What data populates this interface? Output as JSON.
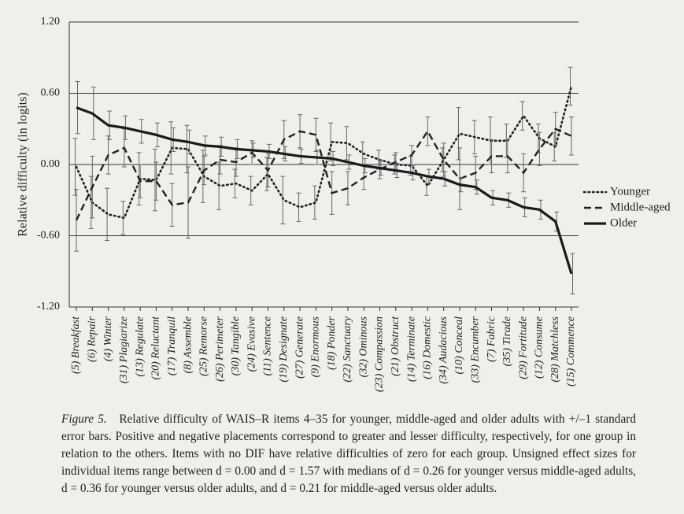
{
  "chart_data": {
    "type": "line",
    "y_label": "Relative difficulty (in logits)",
    "categories": [
      "(5) Breakfast",
      "(6) Repair",
      "(4) Winter",
      "(31) Plagiarize",
      "(13) Regulate",
      "(20) Reluctant",
      "(17) Tranquil",
      "(8) Assemble",
      "(25) Remorse",
      "(26) Perimeter",
      "(30) Tangible",
      "(24) Evasive",
      "(11) Sentence",
      "(19) Designate",
      "(27) Generate",
      "(9) Enormous",
      "(18) Ponder",
      "(22) Sanctuary",
      "(32) Ominous",
      "(23) Compassion",
      "(21) Obstruct",
      "(14) Terminate",
      "(16) Domestic",
      "(34) Audacious",
      "(10) Conceal",
      "(33) Encumber",
      "(7) Fabric",
      "(35) Tirade",
      "(29) Fortitude",
      "(12) Consume",
      "(28) Matchless",
      "(15) Commence"
    ],
    "series": [
      {
        "name": "Younger",
        "color": "#222222",
        "style": "dotted",
        "values": [
          -0.02,
          -0.32,
          -0.42,
          -0.45,
          -0.12,
          -0.13,
          0.14,
          0.13,
          -0.1,
          -0.18,
          -0.16,
          -0.22,
          -0.08,
          -0.3,
          -0.36,
          -0.32,
          0.19,
          0.18,
          0.09,
          0.04,
          0.0,
          -0.01,
          -0.18,
          0.04,
          0.26,
          0.23,
          0.2,
          0.2,
          0.41,
          0.22,
          0.15,
          0.66
        ],
        "errors": [
          0.24,
          0.22,
          0.22,
          0.14,
          0.22,
          0.26,
          0.22,
          0.2,
          0.22,
          0.2,
          0.12,
          0.12,
          0.14,
          0.2,
          0.12,
          0.14,
          0.16,
          0.14,
          0.1,
          0.08,
          0.08,
          0.08,
          0.08,
          0.1,
          0.22,
          0.14,
          0.2,
          0.14,
          0.12,
          0.12,
          0.12,
          0.16
        ]
      },
      {
        "name": "Middle-aged",
        "color": "#222222",
        "style": "dashed",
        "values": [
          -0.47,
          -0.19,
          0.08,
          0.14,
          -0.14,
          -0.14,
          -0.34,
          -0.32,
          -0.05,
          0.04,
          0.02,
          0.1,
          -0.05,
          0.21,
          0.28,
          0.25,
          -0.24,
          -0.2,
          -0.11,
          -0.04,
          0.02,
          0.08,
          0.28,
          0.04,
          -0.12,
          -0.07,
          0.07,
          0.07,
          -0.07,
          0.13,
          0.3,
          0.24
        ],
        "errors": [
          0.26,
          0.26,
          0.16,
          0.16,
          0.14,
          0.16,
          0.18,
          0.3,
          0.12,
          0.12,
          0.12,
          0.1,
          0.14,
          0.16,
          0.14,
          0.14,
          0.18,
          0.14,
          0.1,
          0.08,
          0.08,
          0.08,
          0.12,
          0.14,
          0.26,
          0.14,
          0.14,
          0.14,
          0.16,
          0.14,
          0.14,
          0.16
        ]
      },
      {
        "name": "Older",
        "color": "#1a1a1a",
        "style": "solid",
        "values": [
          0.48,
          0.43,
          0.33,
          0.31,
          0.28,
          0.25,
          0.21,
          0.19,
          0.16,
          0.15,
          0.13,
          0.12,
          0.11,
          0.09,
          0.07,
          0.06,
          0.05,
          0.02,
          -0.01,
          -0.03,
          -0.05,
          -0.07,
          -0.1,
          -0.12,
          -0.17,
          -0.19,
          -0.28,
          -0.3,
          -0.36,
          -0.38,
          -0.48,
          -0.92
        ],
        "errors": [
          0.22,
          0.22,
          0.12,
          0.1,
          0.1,
          0.1,
          0.1,
          0.1,
          0.08,
          0.08,
          0.08,
          0.06,
          0.06,
          0.06,
          0.06,
          0.06,
          0.06,
          0.06,
          0.06,
          0.06,
          0.06,
          0.06,
          0.06,
          0.06,
          0.06,
          0.06,
          0.06,
          0.06,
          0.08,
          0.08,
          0.08,
          0.17
        ]
      }
    ],
    "ylim": [
      -1.2,
      1.2
    ],
    "yticks": [
      {
        "value": 1.2,
        "label": "1.20"
      },
      {
        "value": 0.6,
        "label": "0.60"
      },
      {
        "value": 0,
        "label": "0.00"
      },
      {
        "value": -0.6,
        "label": "-0.60"
      },
      {
        "value": -1.2,
        "label": "-1.20"
      }
    ],
    "grid": true,
    "legend": "right",
    "caption_label": "Figure 5.",
    "caption": "Relative difficulty of WAIS–R items 4–35 for younger, middle-aged and older adults with +/–1 standard error bars. Positive and negative placements correspond to greater and lesser difficulty, respectively, for one group in relation to the others. Items with no DIF have relative difficulties of zero for each group. Unsigned effect sizes for individual items range between d = 0.00 and d = 1.57 with medians of d = 0.26 for younger versus middle-aged adults, d = 0.36 for younger versus older adults, and d = 0.21 for middle-aged versus older adults."
  }
}
